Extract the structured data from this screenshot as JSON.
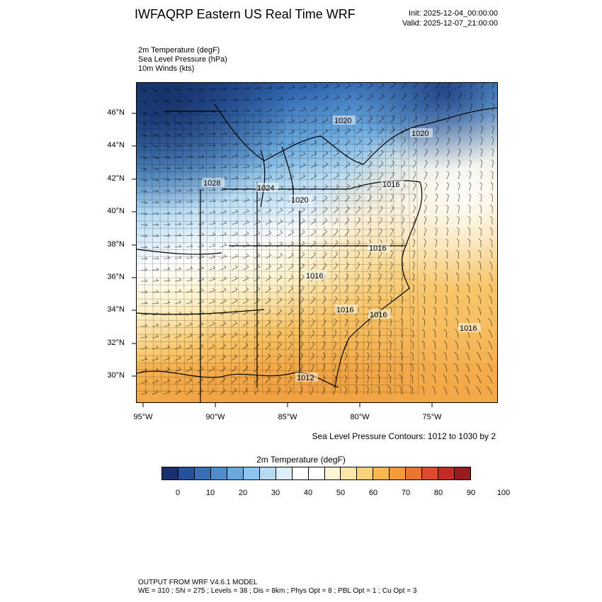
{
  "header": {
    "title": "IWFAQRP Eastern US Real Time WRF",
    "init": "Init: 2025-12-04_00:00:00",
    "valid": "Valid: 2025-12-07_21:00:00"
  },
  "variables": [
    "2m Temperature   (degF)",
    "Sea Level Pressure   (hPa)",
    "10m Winds   (kts)"
  ],
  "map": {
    "lat_labels": [
      "46°N",
      "44°N",
      "42°N",
      "40°N",
      "38°N",
      "36°N",
      "34°N",
      "32°N",
      "30°N"
    ],
    "lon_labels": [
      "95°W",
      "90°W",
      "85°W",
      "80°W",
      "75°W"
    ],
    "pressure_labels": [
      "1020",
      "1020",
      "1028",
      "1024",
      "1020",
      "1016",
      "1016",
      "1016",
      "1016",
      "1016",
      "1016",
      "1012"
    ],
    "contour_note": "Sea Level Pressure Contours: 1012 to 1030 by 2"
  },
  "colorbar": {
    "title": "2m Temperature  (degF)",
    "ticks": [
      "0",
      "10",
      "20",
      "30",
      "40",
      "50",
      "60",
      "70",
      "80",
      "90",
      "100"
    ],
    "colors": [
      "#1a2f6b",
      "#25509c",
      "#3a6fb5",
      "#4f8cc9",
      "#6aa9de",
      "#8ec5ee",
      "#b5dbf5",
      "#dbeefa",
      "#ffffff",
      "#ffffff",
      "#fff5d6",
      "#fde6a8",
      "#fbd37c",
      "#f9b84f",
      "#f39a3a",
      "#ea7434",
      "#dc4b2e",
      "#c42a25",
      "#9a1b1e"
    ]
  },
  "footer": {
    "line1": "OUTPUT FROM WRF V4.6.1 MODEL",
    "line2": "WE = 310 ; SN = 275 ; Levels = 38 ; Dis = 8km ; Phys Opt = 8 ; PBL Opt = 1 ; Cu Opt = 3"
  }
}
